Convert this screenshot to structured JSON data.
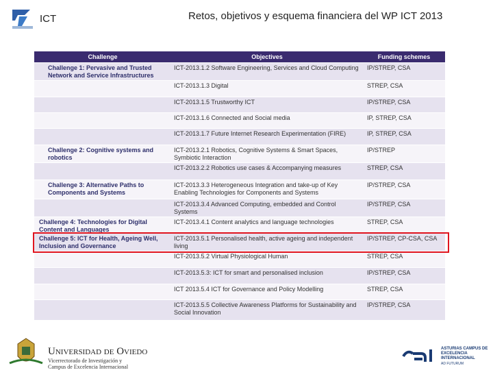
{
  "header": {
    "logo": "ICT",
    "title": "Retos, objetivos y esquema financiera del WP ICT 2013"
  },
  "table": {
    "columns": [
      "Challenge",
      "Objectives",
      "Funding schemes"
    ],
    "groups": [
      {
        "challenge": "Challenge 1: Pervasive and Trusted Network and Service Infrastructures",
        "items": [
          {
            "objective": "ICT-2013.1.2 Software Engineering, Services and Cloud Computing",
            "funding": "IP/STREP, CSA"
          },
          {
            "objective": "ICT-2013.1.3 Digital",
            "funding": "STREP, CSA"
          },
          {
            "objective": "ICT-2013.1.5 Trustworthy ICT",
            "funding": "IP/STREP, CSA"
          },
          {
            "objective": "ICT-2013.1.6 Connected and Social media",
            "funding": "IP, STREP, CSA"
          },
          {
            "objective": "ICT-2013.1.7 Future Internet Research Experimentation (FIRE)",
            "funding": "IP, STREP, CSA"
          }
        ]
      },
      {
        "challenge": "Challenge 2: Cognitive systems and robotics",
        "items": [
          {
            "objective": "ICT-2013.2.1 Robotics, Cognitive Systems & Smart Spaces, Symbiotic Interaction",
            "funding": "IP/STREP"
          },
          {
            "objective": "ICT-2013.2.2 Robotics use cases & Accompanying measures",
            "funding": "STREP, CSA"
          }
        ]
      },
      {
        "challenge": "Challenge 3: Alternative Paths to Components and Systems",
        "items": [
          {
            "objective": "ICT-2013.3.3 Heterogeneous Integration and take-up of Key Enabling Technologies for Components and Systems",
            "funding": "IP/STREP, CSA"
          },
          {
            "objective": "ICT-2013.3.4 Advanced Computing, embedded and Control Systems",
            "funding": "IP/STREP, CSA"
          }
        ]
      },
      {
        "challenge": "Challenge 4: Technologies for Digital Content and Languages",
        "items": [
          {
            "objective": "ICT-2013.4.1 Content analytics and language technologies",
            "funding": "STREP, CSA"
          }
        ]
      },
      {
        "challenge": "Challenge 5: ICT for Health, Ageing Well, Inclusion and Governance",
        "items": [
          {
            "objective": "ICT-2013.5.1 Personalised health, active ageing and independent living",
            "funding": "IP/STREP, CP-CSA, CSA"
          },
          {
            "objective": "ICT-2013.5.2 Virtual Physiological Human",
            "funding": "STREP, CSA"
          },
          {
            "objective": "ICT-2013.5.3: ICT for smart and personalised inclusion",
            "funding": "IP/STREP, CSA"
          },
          {
            "objective": "ICT 2013.5.4 ICT for Governance and Policy Modelling",
            "funding": "STREP, CSA"
          },
          {
            "objective": "ICT-2013.5.5 Collective Awareness Platforms for Sustainability and Social Innovation",
            "funding": "IP/STREP, CSA"
          }
        ]
      }
    ]
  },
  "footer": {
    "university": "Universidad de Oviedo",
    "vicerrectorado": "Vicerrectorado de Investigación y Campus de Excelencia Internacional",
    "campus": "ASTURIAS CAMPUS DE EXCELENCIA INTERNACIONAL",
    "motto": "AD FUTURUM"
  }
}
